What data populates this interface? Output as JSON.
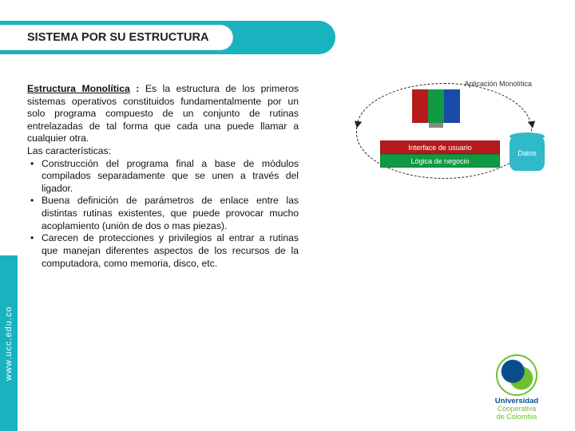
{
  "header": {
    "title": "SISTEMA POR SU ESTRUCTURA"
  },
  "body": {
    "term": "Estructura Monolítica",
    "sep": " : ",
    "definition": "Es la estructura de los primeros sistemas operativos constituidos fundamentalmente por un solo programa compuesto de un conjunto de rutinas entrelazadas de tal forma que cada una puede llamar a cualquier otra.",
    "chars_label": "Las características:",
    "bullets": [
      "Construcción del programa final a base de módulos compilados separadamente que se unen a través del ligador.",
      "Buena definición de parámetros de enlace entre las distintas rutinas existentes, que puede provocar mucho acoplamiento (unión de dos o mas piezas).",
      "Carecen de protecciones y privilegios al entrar a rutinas que manejan diferentes aspectos de los recursos de la computadora, como memoria, disco, etc."
    ]
  },
  "diagram": {
    "title": "Aplicación Monolítica",
    "ui_layer": "Interface de usuario",
    "logic_layer": "Lógica de negocio",
    "data_cyl": "Datos"
  },
  "sidebar": {
    "url": "www.ucc.edu.co"
  },
  "logo": {
    "line1": "Universidad",
    "line2": "Cooperativa",
    "line3": "de Colombia"
  },
  "colors": {
    "accent": "#19b3c0",
    "ui_layer": "#b61a1a",
    "logic_layer": "#119944",
    "data": "#2fb9c9",
    "logo_blue": "#0a4d8c",
    "logo_green": "#6fbf2f"
  }
}
